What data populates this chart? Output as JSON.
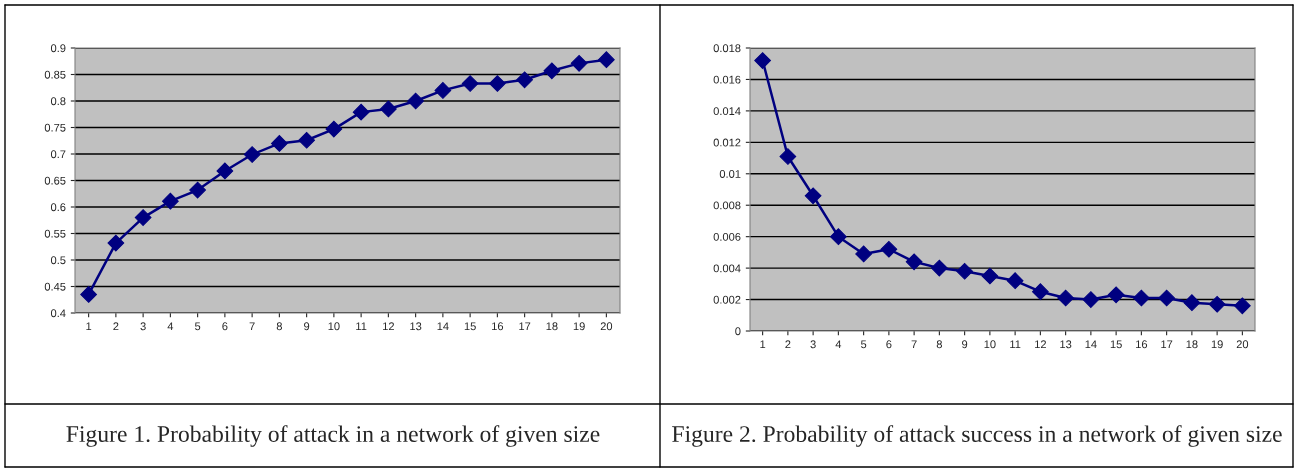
{
  "chart_data": [
    {
      "type": "line",
      "title": "Figure 1. Probability of attack in a network of given size",
      "categories": [
        "1",
        "2",
        "3",
        "4",
        "5",
        "6",
        "7",
        "8",
        "9",
        "10",
        "11",
        "12",
        "13",
        "14",
        "15",
        "16",
        "17",
        "18",
        "19",
        "20"
      ],
      "series": [
        {
          "color": "#000080",
          "values": [
            0.435,
            0.532,
            0.58,
            0.611,
            0.632,
            0.668,
            0.699,
            0.72,
            0.726,
            0.747,
            0.779,
            0.785,
            0.8,
            0.82,
            0.833,
            0.833,
            0.84,
            0.857,
            0.871,
            0.878
          ]
        }
      ],
      "ylim": [
        0.4,
        0.9
      ],
      "yticks": [
        0.4,
        0.45,
        0.5,
        0.55,
        0.6,
        0.65,
        0.7,
        0.75,
        0.8,
        0.85,
        0.9
      ],
      "grid": "y",
      "marker": "diamond",
      "line_style": "solid",
      "legend": false
    },
    {
      "type": "line",
      "title": "Figure 2. Probability of attack success in a network of given size",
      "categories": [
        "1",
        "2",
        "3",
        "4",
        "5",
        "6",
        "7",
        "8",
        "9",
        "10",
        "11",
        "12",
        "13",
        "14",
        "15",
        "16",
        "17",
        "18",
        "19",
        "20"
      ],
      "series": [
        {
          "color": "#000080",
          "values": [
            0.0172,
            0.0111,
            0.0086,
            0.006,
            0.0049,
            0.0052,
            0.0044,
            0.004,
            0.0038,
            0.0035,
            0.0032,
            0.0025,
            0.0021,
            0.002,
            0.0023,
            0.0021,
            0.0021,
            0.0018,
            0.0017,
            0.0016
          ]
        }
      ],
      "ylim": [
        0,
        0.018
      ],
      "yticks": [
        0,
        0.002,
        0.004,
        0.006,
        0.008,
        0.01,
        0.012,
        0.014,
        0.016,
        0.018
      ],
      "grid": "y",
      "marker": "diamond",
      "line_style": "solid",
      "legend": false
    }
  ]
}
